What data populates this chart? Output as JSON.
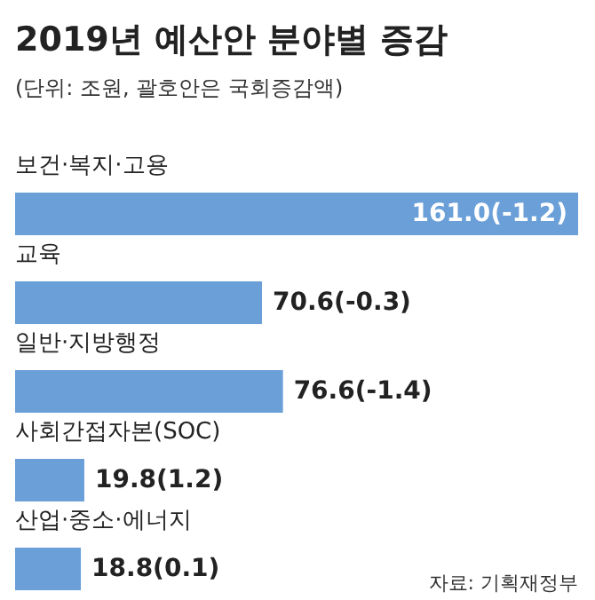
{
  "chart_data": {
    "type": "bar",
    "orientation": "horizontal",
    "title": "2019년 예산안 분야별 증감",
    "subtitle": "(단위: 조원, 괄호안은 국회증감액)",
    "categories": [
      "보건·복지·고용",
      "교육",
      "일반·지방행정",
      "사회간접자본(SOC)",
      "산업·중소·에너지"
    ],
    "values": [
      161.0,
      70.6,
      76.6,
      19.8,
      18.8
    ],
    "value_labels": [
      "161.0(-1.2)",
      "70.6(-0.3)",
      "76.6(-1.4)",
      "19.8(1.2)",
      "18.8(0.1)"
    ],
    "color": "#6a9fd8",
    "annotations": [
      "자료: 기획재정부"
    ]
  }
}
